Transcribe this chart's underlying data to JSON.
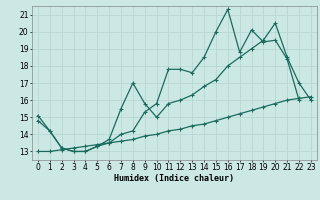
{
  "title": "",
  "xlabel": "Humidex (Indice chaleur)",
  "bg_color": "#cce8e4",
  "line_color": "#1a6b5e",
  "grid_color": "#b8d8d4",
  "xlim": [
    -0.5,
    23.5
  ],
  "ylim": [
    12.5,
    21.5
  ],
  "xticks": [
    0,
    1,
    2,
    3,
    4,
    5,
    6,
    7,
    8,
    9,
    10,
    11,
    12,
    13,
    14,
    15,
    16,
    17,
    18,
    19,
    20,
    21,
    22,
    23
  ],
  "yticks": [
    13,
    14,
    15,
    16,
    17,
    18,
    19,
    20,
    21
  ],
  "curve1_x": [
    0,
    1,
    2,
    3,
    4,
    5,
    6,
    7,
    8,
    9,
    10,
    11,
    12,
    13,
    14,
    15,
    16,
    17,
    18,
    19,
    20,
    21,
    22
  ],
  "curve1_y": [
    15.1,
    14.2,
    13.2,
    13.0,
    13.0,
    13.3,
    13.5,
    14.0,
    14.2,
    15.3,
    15.8,
    17.8,
    17.8,
    17.6,
    18.5,
    20.0,
    21.3,
    18.8,
    20.1,
    19.4,
    19.5,
    18.4,
    16.0
  ],
  "curve2_x": [
    0,
    1,
    2,
    3,
    4,
    5,
    6,
    7,
    8,
    9,
    10,
    11,
    12,
    13,
    14,
    15,
    16,
    17,
    18,
    19,
    20,
    21,
    22,
    23
  ],
  "curve2_y": [
    14.8,
    14.2,
    13.2,
    13.0,
    13.0,
    13.3,
    13.7,
    15.5,
    17.0,
    15.8,
    15.0,
    15.8,
    16.0,
    16.3,
    16.8,
    17.2,
    18.0,
    18.5,
    19.0,
    19.5,
    20.5,
    18.5,
    17.0,
    16.0
  ],
  "curve3_x": [
    0,
    1,
    2,
    3,
    4,
    5,
    6,
    7,
    8,
    9,
    10,
    11,
    12,
    13,
    14,
    15,
    16,
    17,
    18,
    19,
    20,
    21,
    22,
    23
  ],
  "curve3_y": [
    13.0,
    13.0,
    13.1,
    13.2,
    13.3,
    13.4,
    13.5,
    13.6,
    13.7,
    13.9,
    14.0,
    14.2,
    14.3,
    14.5,
    14.6,
    14.8,
    15.0,
    15.2,
    15.4,
    15.6,
    15.8,
    16.0,
    16.1,
    16.2
  ]
}
